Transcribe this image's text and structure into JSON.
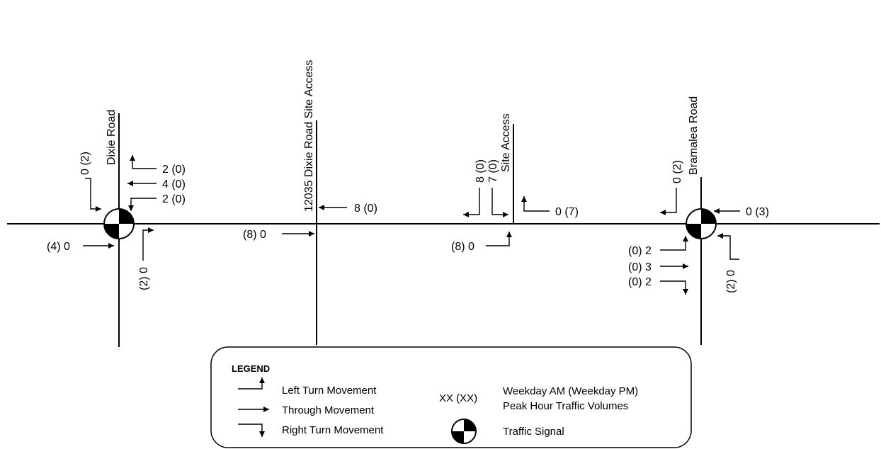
{
  "roads": {
    "dixie": "Dixie Road",
    "site12035": "12035 Dixie Road Site Access",
    "site": "Site Access",
    "bramalea": "Bramalea Road"
  },
  "volumes": {
    "dixie_sb_right": "0 (2)",
    "dixie_wb_left": "2 (0)",
    "dixie_wb_thru": "4 (0)",
    "dixie_wb_right": "2 (0)",
    "dixie_eb_thru": "(4) 0",
    "dixie_nb_right": "(2) 0",
    "s12035_wb_thru": "8 (0)",
    "s12035_eb_thru": "(8) 0",
    "site_sb_right": "8 (0)",
    "site_sb_left": "7 (0)",
    "site_wb_left": "0 (7)",
    "site_eb_left": "(8) 0",
    "bram_sb_right": "0 (2)",
    "bram_wb_thru": "0 (3)",
    "bram_eb_left": "(0) 2",
    "bram_eb_thru": "(0) 3",
    "bram_eb_right": "(0) 2",
    "bram_nb_right": "(2) 0"
  },
  "legend": {
    "title": "LEGEND",
    "left": "Left Turn Movement",
    "through": "Through Movement",
    "right": "Right Turn Movement",
    "xx": "XX (XX)",
    "peak1": "Weekday AM (Weekday PM)",
    "peak2": "Peak Hour Traffic Volumes",
    "signal": "Traffic Signal"
  }
}
